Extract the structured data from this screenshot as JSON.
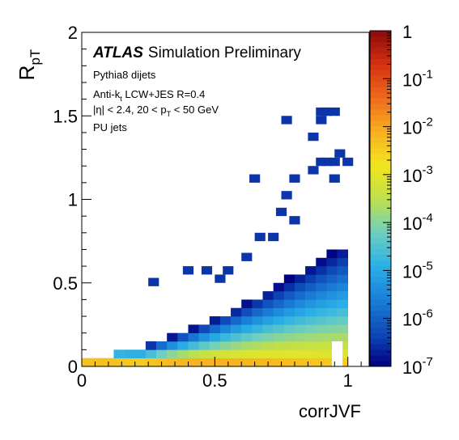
{
  "chart_data": {
    "type": "heatmap",
    "x_label": "corrJVF",
    "y_label_main": "R",
    "y_label_sub": "pT",
    "xlim": [
      0,
      1.08
    ],
    "ylim": [
      0,
      2
    ],
    "x_ticks": [
      {
        "v": 0,
        "label": "0"
      },
      {
        "v": 0.5,
        "label": "0.5"
      },
      {
        "v": 1,
        "label": "1"
      }
    ],
    "y_ticks": [
      {
        "v": 0,
        "label": "0"
      },
      {
        "v": 0.5,
        "label": "0.5"
      },
      {
        "v": 1,
        "label": "1"
      },
      {
        "v": 1.5,
        "label": "1.5"
      },
      {
        "v": 2,
        "label": "2"
      }
    ],
    "bin_width_x": 0.04,
    "bin_height_y": 0.05,
    "annotation": {
      "atlas": "ATLAS",
      "tag": "Simulation Preliminary",
      "lines": [
        {
          "text": "Pythia8 dijets"
        },
        {
          "text": "Anti-k",
          "sub": "t",
          "after": " LCW+JES R=0.4"
        },
        {
          "text": "|η| < 2.4, 20 < p",
          "sub": "T",
          "after": " < 50 GeV"
        },
        {
          "text": "PU jets"
        }
      ]
    },
    "colorbar": {
      "scale": "log",
      "range": [
        1e-07,
        1
      ],
      "ticks": [
        {
          "v": 0,
          "base": "1",
          "exp": ""
        },
        {
          "v": -1,
          "base": "10",
          "exp": "-1"
        },
        {
          "v": -2,
          "base": "10",
          "exp": "-2"
        },
        {
          "v": -3,
          "base": "10",
          "exp": "-3"
        },
        {
          "v": -4,
          "base": "10",
          "exp": "-4"
        },
        {
          "v": -5,
          "base": "10",
          "exp": "-5"
        },
        {
          "v": -6,
          "base": "10",
          "exp": "-6"
        },
        {
          "v": -7,
          "base": "10",
          "exp": "-7"
        }
      ],
      "colors": [
        "#000080",
        "#0f4ab8",
        "#1a7fd8",
        "#2ab0e6",
        "#6fcfc0",
        "#bfe04a",
        "#f2e51e",
        "#f7b020",
        "#ef6a1c",
        "#d63012",
        "#8a0a0a"
      ]
    },
    "isolated_cells": [
      [
        0.75,
        1.45
      ],
      [
        0.88,
        1.5
      ],
      [
        0.9,
        1.5
      ],
      [
        0.93,
        1.5
      ],
      [
        0.88,
        1.45
      ],
      [
        0.85,
        1.35
      ],
      [
        0.95,
        1.25
      ],
      [
        0.88,
        1.2
      ],
      [
        0.9,
        1.2
      ],
      [
        0.93,
        1.2
      ],
      [
        0.98,
        1.2
      ],
      [
        0.63,
        1.1
      ],
      [
        0.78,
        1.1
      ],
      [
        0.85,
        1.15
      ],
      [
        0.75,
        1.0
      ],
      [
        0.93,
        1.1
      ],
      [
        0.73,
        0.9
      ],
      [
        0.78,
        0.85
      ],
      [
        0.7,
        0.75
      ],
      [
        0.65,
        0.75
      ],
      [
        0.6,
        0.63
      ],
      [
        0.45,
        0.55
      ],
      [
        0.53,
        0.55
      ],
      [
        0.5,
        0.5
      ],
      [
        0.38,
        0.55
      ],
      [
        0.25,
        0.48
      ]
    ]
  }
}
